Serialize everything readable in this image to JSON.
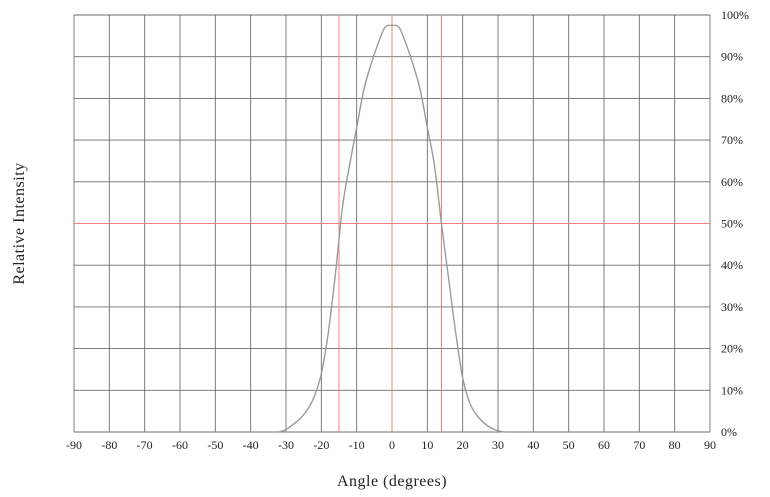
{
  "chart_data": {
    "type": "line",
    "xlabel": "Angle (degrees)",
    "ylabel": "Relative Intensity",
    "x_ticks": [
      -90,
      -80,
      -70,
      -60,
      -50,
      -40,
      -30,
      -20,
      -10,
      0,
      10,
      20,
      30,
      40,
      50,
      60,
      70,
      80,
      90
    ],
    "x_tick_labels": [
      "-90",
      "-80",
      "-70",
      "-60",
      "-50",
      "-40",
      "-30",
      "-20",
      "-10",
      "0",
      "10",
      "20",
      "30",
      "40",
      "50",
      "60",
      "70",
      "80",
      "90"
    ],
    "y_ticks": [
      0,
      10,
      20,
      30,
      40,
      50,
      60,
      70,
      80,
      90,
      100
    ],
    "y_tick_labels": [
      "0%",
      "10%",
      "20%",
      "30%",
      "40%",
      "50%",
      "60%",
      "70%",
      "80%",
      "90%",
      "100%"
    ],
    "y_axis_side": "right",
    "xlim": [
      -90,
      90
    ],
    "ylim": [
      0,
      100
    ],
    "grid": true,
    "series": [
      {
        "x": [
          -32,
          -30,
          -28,
          -26,
          -24,
          -22,
          -20,
          -18,
          -16,
          -14,
          -12,
          -10,
          -8,
          -6,
          -4,
          -2,
          0,
          2,
          4,
          6,
          8,
          10,
          12,
          14,
          16,
          18,
          20,
          22,
          24,
          26,
          28,
          30,
          32
        ],
        "y": [
          0,
          0.6,
          1.8,
          3.2,
          5.3,
          8.5,
          14,
          24,
          38,
          54,
          64,
          73,
          82,
          88,
          93,
          97,
          97.5,
          97,
          93,
          88,
          82,
          73,
          64,
          50,
          37,
          24,
          13,
          7,
          4,
          2.2,
          1,
          0.3,
          0
        ]
      }
    ],
    "reference_lines": [
      {
        "axis": "y",
        "value": 50
      },
      {
        "axis": "x",
        "value": -15
      },
      {
        "axis": "x",
        "value": 0
      },
      {
        "axis": "x",
        "value": 14
      }
    ],
    "colors": {
      "curve": "#9a9a9a",
      "grid": "#6e6e6e",
      "reference": "#f08080",
      "text": "#222222"
    }
  }
}
